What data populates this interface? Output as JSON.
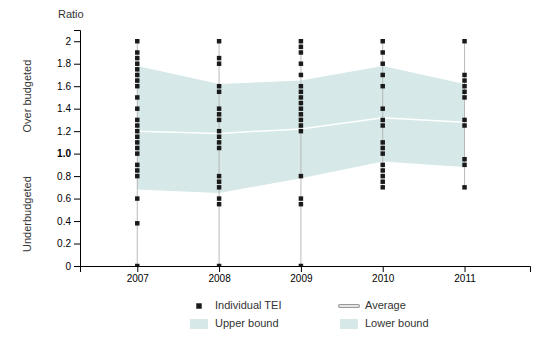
{
  "chart_data": {
    "type": "line",
    "ylabel": "Ratio",
    "annotations": [
      "Over budgeted",
      "Underbudgeted"
    ],
    "x": [
      2007,
      2008,
      2009,
      2010,
      2011
    ],
    "xlim": [
      2006.3,
      2011.8
    ],
    "xticks": [
      2007,
      2008,
      2009,
      2010,
      2011
    ],
    "ylim": [
      0,
      2.1
    ],
    "yticks": [
      0,
      0.2,
      0.4,
      0.6,
      0.8,
      {
        "value": 1.0,
        "label": "1.0"
      },
      1.2,
      1.4,
      1.6,
      1.8,
      2.0
    ],
    "grid": false,
    "legend": "bottom",
    "series": [
      {
        "name": "Individual TEI",
        "type": "scatter",
        "color": "#1a1a1a",
        "marker": "square",
        "x": [
          2007,
          2007,
          2007,
          2007,
          2007,
          2007,
          2007,
          2007,
          2007,
          2007,
          2007,
          2007,
          2007,
          2007,
          2007,
          2007,
          2007,
          2007,
          2007,
          2007,
          2007,
          2007,
          2007,
          2008,
          2008,
          2008,
          2008,
          2008,
          2008,
          2008,
          2008,
          2008,
          2008,
          2008,
          2008,
          2008,
          2008,
          2008,
          2008,
          2008,
          2008,
          2009,
          2009,
          2009,
          2009,
          2009,
          2009,
          2009,
          2009,
          2009,
          2009,
          2009,
          2009,
          2009,
          2009,
          2009,
          2009,
          2009,
          2009,
          2010,
          2010,
          2010,
          2010,
          2010,
          2010,
          2010,
          2010,
          2010,
          2010,
          2010,
          2010,
          2010,
          2010,
          2010,
          2010,
          2011,
          2011,
          2011,
          2011,
          2011,
          2011,
          2011,
          2011,
          2011,
          2011,
          2011
        ],
        "values": [
          0.0,
          0.38,
          0.6,
          0.8,
          0.85,
          0.9,
          1.0,
          1.05,
          1.1,
          1.15,
          1.2,
          1.25,
          1.3,
          1.4,
          1.5,
          1.6,
          1.65,
          1.7,
          1.75,
          1.8,
          1.85,
          1.9,
          2.0,
          0.0,
          0.55,
          0.6,
          0.7,
          0.75,
          0.8,
          1.05,
          1.1,
          1.15,
          1.2,
          1.3,
          1.35,
          1.4,
          1.55,
          1.6,
          1.8,
          1.85,
          2.0,
          0.0,
          0.55,
          0.6,
          0.8,
          1.2,
          1.25,
          1.3,
          1.35,
          1.4,
          1.45,
          1.5,
          1.55,
          1.6,
          1.7,
          1.8,
          1.9,
          1.95,
          2.0,
          0.7,
          0.75,
          0.8,
          0.85,
          0.9,
          1.0,
          1.05,
          1.1,
          1.25,
          1.3,
          1.4,
          1.6,
          1.7,
          1.8,
          1.9,
          2.0,
          0.7,
          0.9,
          0.95,
          1.25,
          1.3,
          1.5,
          1.55,
          1.6,
          1.65,
          1.7,
          2.0
        ]
      },
      {
        "name": "Upper bound",
        "type": "area",
        "color": "#d6e8e8",
        "values": [
          1.78,
          1.62,
          1.65,
          1.78,
          1.62
        ]
      },
      {
        "name": "Average",
        "type": "line",
        "color": "#ffffff",
        "values": [
          1.2,
          1.18,
          1.22,
          1.32,
          1.28
        ]
      },
      {
        "name": "Lower bound",
        "type": "area",
        "color": "#d6e8e8",
        "values": [
          0.68,
          0.65,
          0.78,
          0.93,
          0.88
        ]
      }
    ]
  }
}
